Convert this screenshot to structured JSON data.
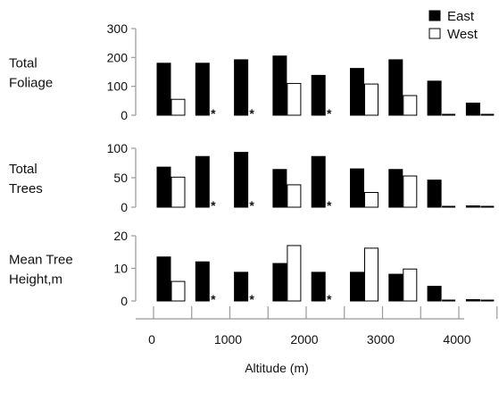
{
  "chart_data": {
    "type": "bar",
    "layout": "three stacked bar panels sharing one x axis",
    "categories": [
      "500",
      "1000",
      "1500",
      "2000",
      "2500",
      "3000",
      "3500",
      "4000",
      "4500"
    ],
    "legend": {
      "placement": "top-right",
      "entries": [
        {
          "name": "East",
          "color": "#000000"
        },
        {
          "name": "West",
          "color": "#ffffff"
        }
      ]
    },
    "panels": [
      {
        "row_label": [
          "Total",
          "Foliage"
        ],
        "ylim": [
          0,
          300
        ],
        "y_ticks": [
          "0",
          "100",
          "200",
          "300"
        ],
        "y_tick_values": [
          0,
          100,
          200,
          300
        ],
        "series": [
          {
            "name": "East",
            "values": [
              180,
              180,
              192,
              205,
              138,
              162,
              192,
              118,
              42
            ]
          },
          {
            "name": "West",
            "values": [
              55,
              null,
              null,
              110,
              null,
              108,
              68,
              4,
              4
            ]
          }
        ],
        "markers": [
          "",
          "*",
          "*",
          "",
          "*",
          "",
          "",
          "",
          ""
        ]
      },
      {
        "row_label": [
          "Total",
          "Trees"
        ],
        "ylim": [
          0,
          100
        ],
        "y_ticks": [
          "0",
          "50",
          "100"
        ],
        "y_tick_values": [
          0,
          50,
          100
        ],
        "series": [
          {
            "name": "East",
            "values": [
              68,
              86,
              93,
              64,
              86,
              65,
              64,
              46,
              1.5
            ]
          },
          {
            "name": "West",
            "values": [
              51,
              null,
              null,
              38,
              null,
              25,
              53,
              1.5,
              1.5
            ]
          }
        ],
        "markers": [
          "",
          "*",
          "*",
          "",
          "*",
          "",
          "",
          "",
          ""
        ]
      },
      {
        "row_label": [
          "Mean Tree",
          "Height,m"
        ],
        "ylim": [
          0,
          20
        ],
        "y_ticks": [
          "0",
          "10",
          "20"
        ],
        "y_tick_values": [
          0,
          10,
          20
        ],
        "series": [
          {
            "name": "East",
            "values": [
              13.5,
              12,
              8.8,
              11.5,
              8.8,
              8.8,
              8.2,
              4.5,
              0.35
            ]
          },
          {
            "name": "West",
            "values": [
              6,
              null,
              null,
              17,
              null,
              16.2,
              9.8,
              0.35,
              0.35
            ]
          }
        ],
        "markers": [
          "",
          "*",
          "*",
          "",
          "*",
          "",
          "",
          "",
          ""
        ]
      }
    ],
    "x_axis": {
      "title": "Altitude (m)",
      "ticks": [
        "0",
        "1000",
        "2000",
        "3000",
        "4000"
      ],
      "tick_values": [
        0,
        1000,
        2000,
        3000,
        4000
      ],
      "xlim": [
        0,
        4900
      ]
    }
  }
}
